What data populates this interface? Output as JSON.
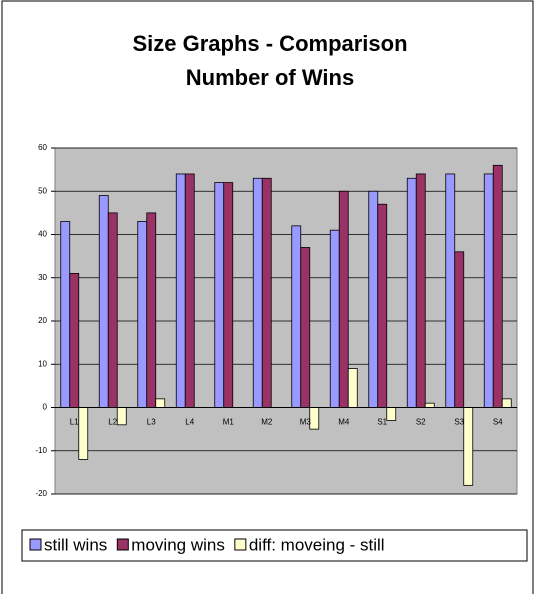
{
  "chart_data": {
    "type": "bar",
    "title": [
      "Size Graphs - Comparison",
      "Number of Wins"
    ],
    "categories": [
      "L1",
      "L2",
      "L3",
      "L4",
      "M1",
      "M2",
      "M3",
      "M4",
      "S1",
      "S2",
      "S3",
      "S4"
    ],
    "series": [
      {
        "name": "still wins",
        "color": "#9999ff",
        "values": [
          43,
          49,
          43,
          54,
          52,
          53,
          42,
          41,
          50,
          53,
          54,
          54
        ]
      },
      {
        "name": "moving wins",
        "color": "#993366",
        "values": [
          31,
          45,
          45,
          54,
          52,
          53,
          37,
          50,
          47,
          54,
          36,
          56
        ]
      },
      {
        "name": "diff: moveing - still",
        "color": "#ffffcc",
        "values": [
          -12,
          -4,
          2,
          0,
          0,
          0,
          -5,
          9,
          -3,
          1,
          -18,
          2
        ]
      }
    ],
    "ylim": [
      -20,
      60
    ],
    "yticks": [
      -20,
      -10,
      0,
      10,
      20,
      30,
      40,
      50,
      60
    ],
    "grid": true,
    "legend": "bottom"
  }
}
